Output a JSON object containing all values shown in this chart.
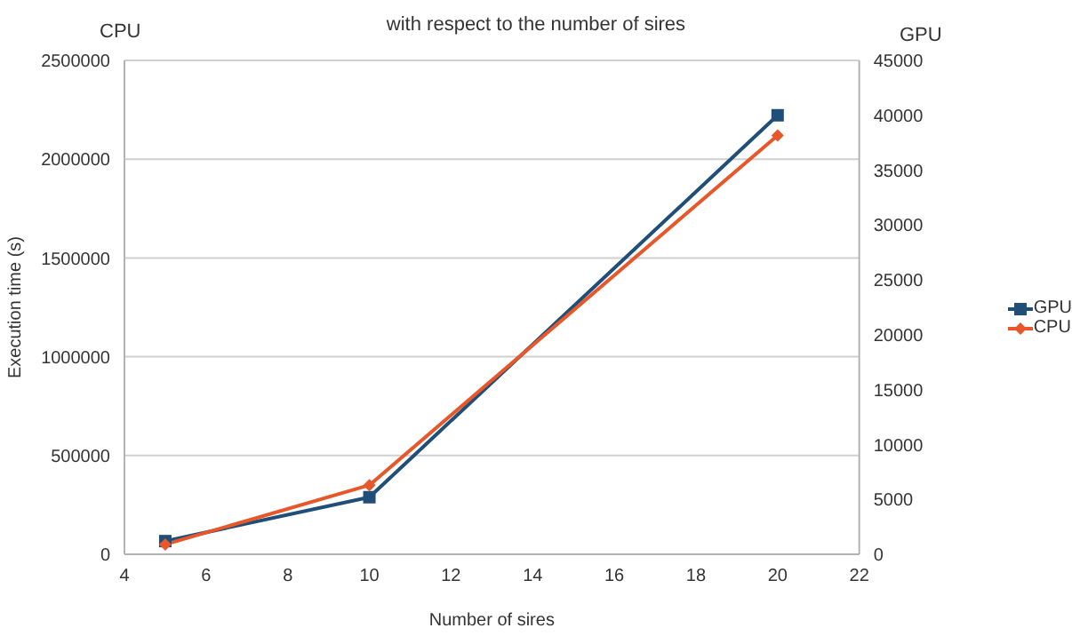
{
  "chart_data": {
    "type": "line",
    "title": "with respect to the number of sires",
    "xlabel": "Number of sires",
    "ylabel": "Execution time (s)",
    "annotations": [
      "CPU",
      "GPU"
    ],
    "x": [
      5,
      10,
      20
    ],
    "series": [
      {
        "name": "GPU",
        "color": "#1f4e79",
        "values": [
          1200,
          5200,
          40000
        ],
        "axis": "y2",
        "marker": "square"
      },
      {
        "name": "CPU",
        "color": "#e8572a",
        "values": [
          50000,
          350000,
          2120000
        ],
        "marker": "diamond"
      }
    ],
    "xlim": [
      4,
      22
    ],
    "xticks": [
      4,
      6,
      8,
      10,
      12,
      14,
      16,
      18,
      20,
      22
    ],
    "ylim": [
      0,
      2500000
    ],
    "yticks": [
      0,
      500000,
      1000000,
      1500000,
      2000000,
      2500000
    ],
    "y2lim": [
      0,
      45000
    ],
    "y2ticks": [
      0,
      5000,
      10000,
      15000,
      20000,
      25000,
      30000,
      35000,
      40000,
      45000
    ],
    "grid": "y",
    "legend": "right",
    "line_style": "solid"
  }
}
